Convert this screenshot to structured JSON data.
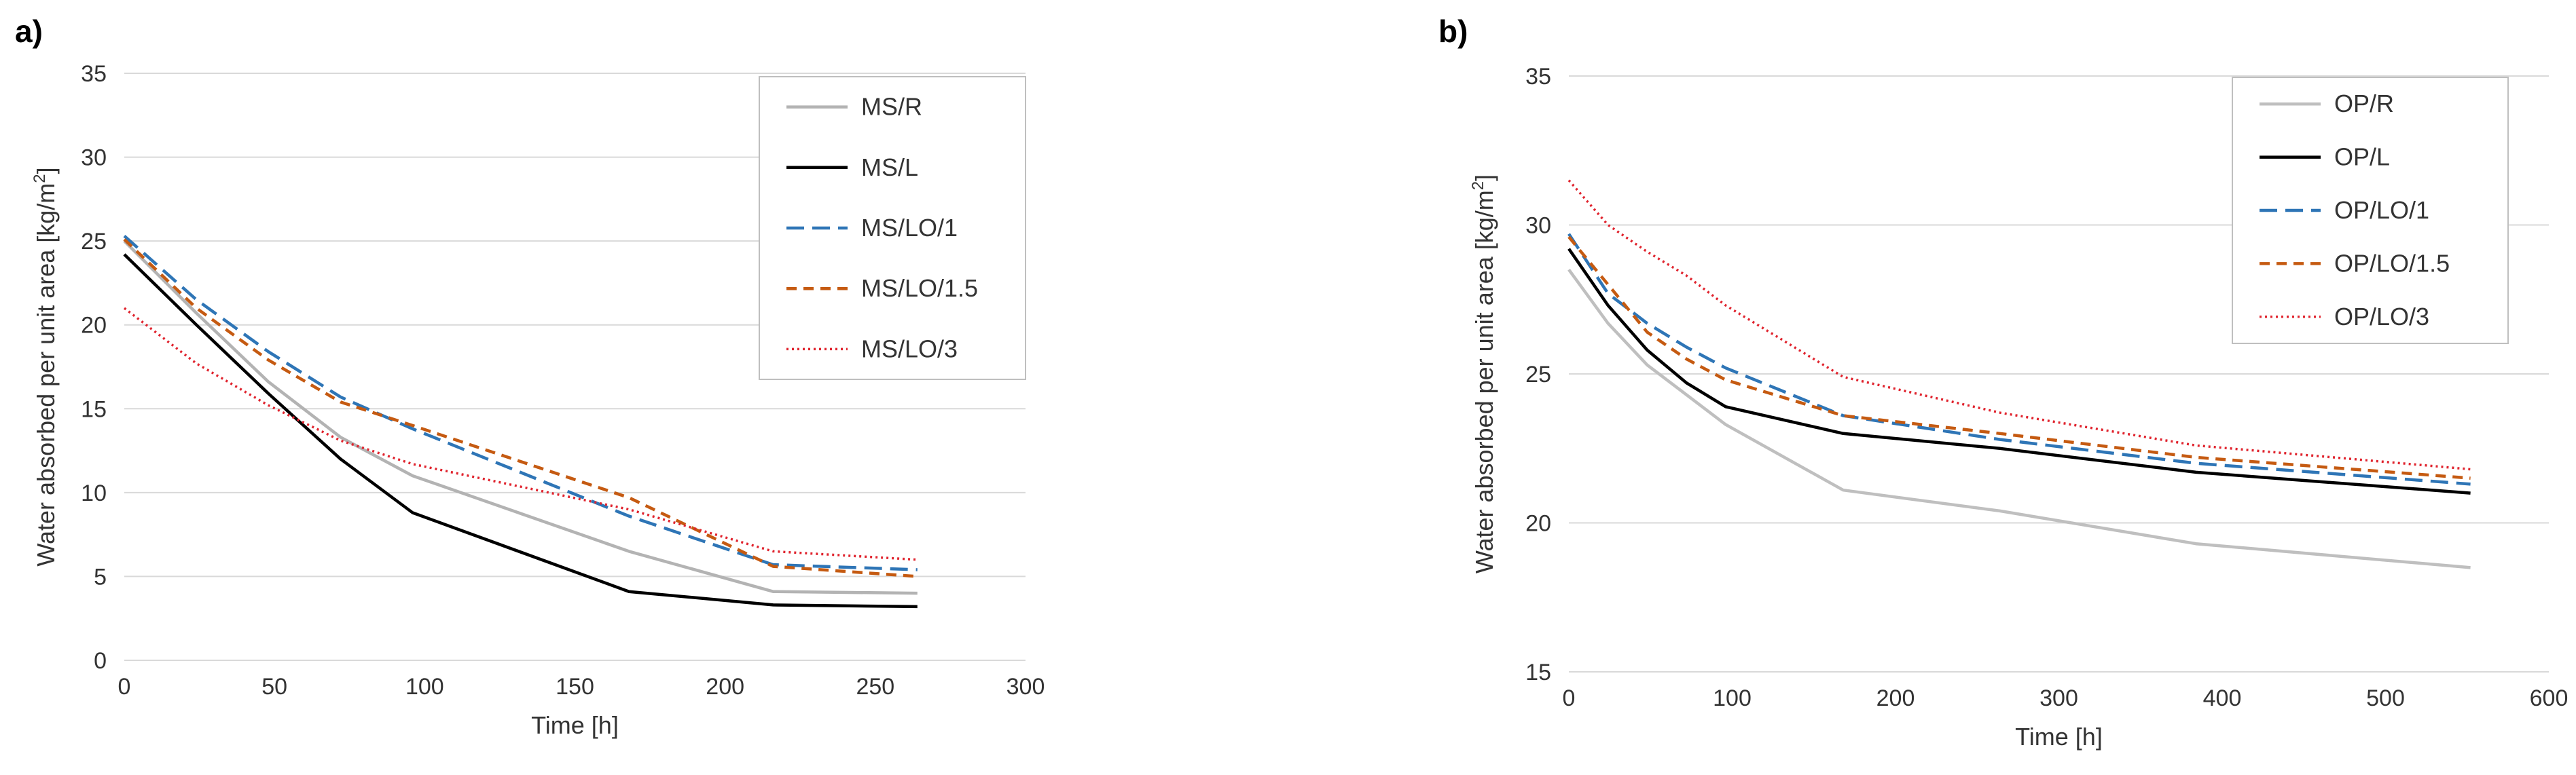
{
  "chart_data": [
    {
      "type": "line",
      "panel_label": "a)",
      "xlabel": "Time [h]",
      "ylabel": "Water absorbed per unit area [kg/m",
      "ylabel_sup": "2",
      "ylabel_end": "]",
      "xlim": [
        0,
        300
      ],
      "ylim": [
        0,
        35
      ],
      "xticks": [
        0,
        50,
        100,
        150,
        200,
        250,
        300
      ],
      "yticks": [
        0,
        5,
        10,
        15,
        20,
        25,
        30,
        35
      ],
      "grid": "horizontal",
      "legend_position": "top-right",
      "series": [
        {
          "name": "MS/R",
          "color": "#b3b3b3",
          "dash": "solid",
          "x": [
            0,
            24,
            48,
            72,
            96,
            168,
            216,
            264
          ],
          "y": [
            25.0,
            20.7,
            16.6,
            13.3,
            11.0,
            6.5,
            4.1,
            4.0
          ]
        },
        {
          "name": "MS/L",
          "color": "#000000",
          "dash": "solid",
          "x": [
            0,
            24,
            48,
            72,
            96,
            168,
            216,
            264
          ],
          "y": [
            24.2,
            20.0,
            15.9,
            12.0,
            8.8,
            4.1,
            3.3,
            3.2
          ]
        },
        {
          "name": "MS/LO/1",
          "color": "#2e75b6",
          "dash": "longdash",
          "x": [
            0,
            24,
            48,
            72,
            96,
            168,
            216,
            264
          ],
          "y": [
            25.3,
            21.5,
            18.4,
            15.7,
            13.8,
            8.6,
            5.7,
            5.4
          ]
        },
        {
          "name": "MS/LO/1.5",
          "color": "#c55a11",
          "dash": "dash",
          "x": [
            0,
            24,
            48,
            72,
            96,
            168,
            216,
            264
          ],
          "y": [
            25.1,
            21.0,
            17.9,
            15.4,
            14.0,
            9.7,
            5.6,
            5.0
          ]
        },
        {
          "name": "MS/LO/3",
          "color": "#e0242e",
          "dash": "dot",
          "x": [
            0,
            24,
            48,
            72,
            96,
            168,
            216,
            264
          ],
          "y": [
            21.0,
            17.7,
            15.2,
            13.1,
            11.7,
            9.0,
            6.5,
            6.0
          ]
        }
      ]
    },
    {
      "type": "line",
      "panel_label": "b)",
      "xlabel": "Time [h]",
      "ylabel": "Water absorbed per unit area [kg/m",
      "ylabel_sup": "2",
      "ylabel_end": "]",
      "xlim": [
        0,
        600
      ],
      "ylim": [
        15,
        35
      ],
      "xticks": [
        0,
        100,
        200,
        300,
        400,
        500,
        600
      ],
      "yticks": [
        15,
        20,
        25,
        30,
        35
      ],
      "grid": "horizontal",
      "legend_position": "top-right",
      "series": [
        {
          "name": "OP/R",
          "color": "#bfbfbf",
          "dash": "solid",
          "x": [
            0,
            24,
            48,
            72,
            96,
            168,
            264,
            384,
            552
          ],
          "y": [
            28.5,
            26.7,
            25.3,
            24.3,
            23.3,
            21.1,
            20.4,
            19.3,
            18.5
          ]
        },
        {
          "name": "OP/L",
          "color": "#000000",
          "dash": "solid",
          "x": [
            0,
            24,
            48,
            72,
            96,
            168,
            264,
            384,
            552
          ],
          "y": [
            29.2,
            27.3,
            25.8,
            24.7,
            23.9,
            23.0,
            22.5,
            21.7,
            21.0
          ]
        },
        {
          "name": "OP/LO/1",
          "color": "#2e75b6",
          "dash": "longdash",
          "x": [
            0,
            24,
            48,
            72,
            96,
            168,
            264,
            384,
            552
          ],
          "y": [
            29.7,
            27.7,
            26.7,
            25.9,
            25.2,
            23.6,
            22.8,
            22.0,
            21.3
          ]
        },
        {
          "name": "OP/LO/1.5",
          "color": "#c55a11",
          "dash": "dash",
          "x": [
            0,
            24,
            48,
            72,
            96,
            168,
            264,
            384,
            552
          ],
          "y": [
            29.6,
            28.0,
            26.4,
            25.5,
            24.8,
            23.6,
            23.0,
            22.2,
            21.5
          ]
        },
        {
          "name": "OP/LO/3",
          "color": "#e0242e",
          "dash": "dot",
          "x": [
            0,
            24,
            48,
            72,
            96,
            168,
            264,
            384,
            552
          ],
          "y": [
            31.5,
            30.0,
            29.1,
            28.3,
            27.3,
            24.9,
            23.7,
            22.6,
            21.8
          ]
        }
      ]
    }
  ]
}
